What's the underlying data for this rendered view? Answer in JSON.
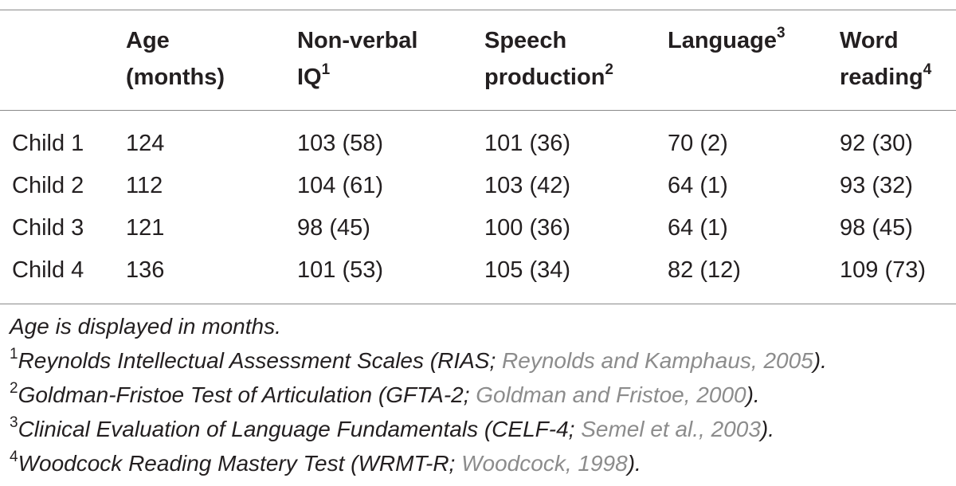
{
  "table": {
    "headers": [
      {
        "text": "",
        "sup": ""
      },
      {
        "text": "Age (months)",
        "line1": "Age",
        "line2": "(months)",
        "sup": ""
      },
      {
        "text": "Non-verbal IQ",
        "line1": "Non-verbal",
        "line2": "IQ",
        "sup": "1"
      },
      {
        "text": "Speech production",
        "line1": "Speech",
        "line2": "production",
        "sup": "2"
      },
      {
        "text": "Language",
        "line1": "Language",
        "line2": "",
        "sup": "3"
      },
      {
        "text": "Word reading",
        "line1": "Word",
        "line2": "reading",
        "sup": "4"
      }
    ],
    "rows": [
      {
        "label": "Child 1",
        "age": "124",
        "iq": "103 (58)",
        "speech": "101 (36)",
        "language": "70 (2)",
        "reading": "92 (30)"
      },
      {
        "label": "Child 2",
        "age": "112",
        "iq": "104 (61)",
        "speech": "103 (42)",
        "language": "64 (1)",
        "reading": "93 (32)"
      },
      {
        "label": "Child 3",
        "age": "121",
        "iq": "98 (45)",
        "speech": "100 (36)",
        "language": "64 (1)",
        "reading": "98 (45)"
      },
      {
        "label": "Child 4",
        "age": "136",
        "iq": "101 (53)",
        "speech": "105 (34)",
        "language": "82 (12)",
        "reading": "109 (73)"
      }
    ]
  },
  "footnotes": {
    "note": "Age is displayed in months.",
    "items": [
      {
        "marker": "1",
        "text": "Reynolds Intellectual Assessment Scales (RIAS; ",
        "cite": "Reynolds and Kamphaus, 2005",
        "end": ")."
      },
      {
        "marker": "2",
        "text": "Goldman-Fristoe Test of Articulation (GFTA-2; ",
        "cite": "Goldman and Fristoe, 2000",
        "end": ")."
      },
      {
        "marker": "3",
        "text": "Clinical Evaluation of Language Fundamentals (CELF-4; ",
        "cite": "Semel et al., 2003",
        "end": ")."
      },
      {
        "marker": "4",
        "text": "Woodcock Reading Mastery Test (WRMT-R; ",
        "cite": "Woodcock, 1998",
        "end": ")."
      }
    ]
  }
}
